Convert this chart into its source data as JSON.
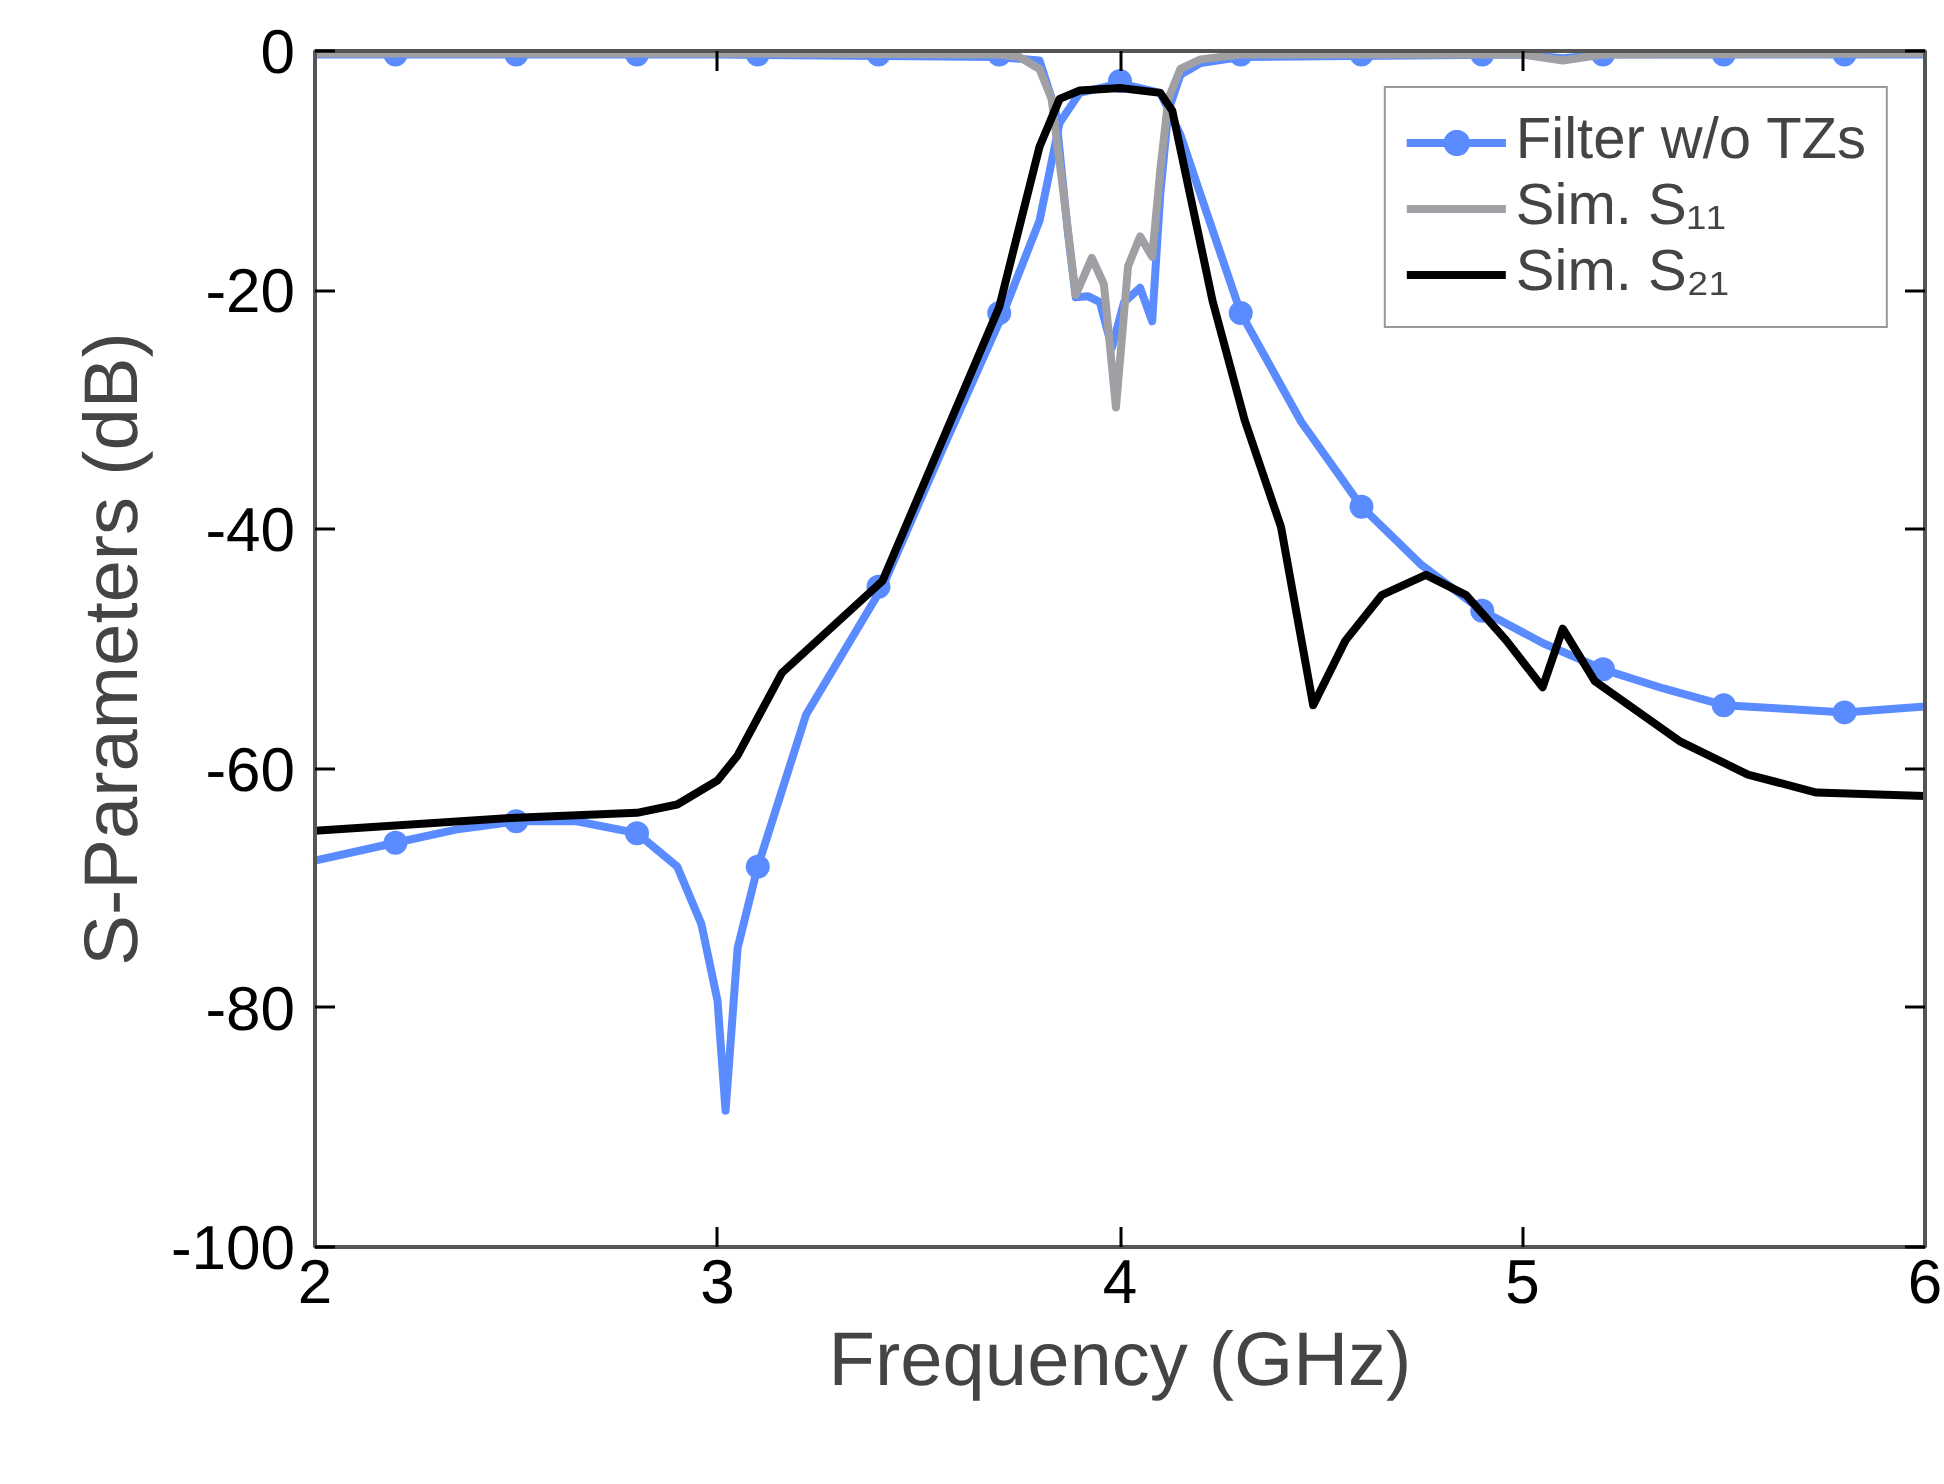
{
  "chart_data": {
    "type": "line",
    "xlabel": "Frequency (GHz)",
    "ylabel": "S-Parameters (dB)",
    "xlim": [
      2,
      6
    ],
    "ylim": [
      -100,
      0
    ],
    "xticks": [
      2,
      3,
      4,
      5,
      6
    ],
    "yticks": [
      -100,
      -80,
      -60,
      -40,
      -20,
      0
    ],
    "grid": false,
    "legend": "top right",
    "series": [
      {
        "name": "Filter w/o TZs",
        "color": "#5b8cff",
        "marker": "none",
        "x": [
          2.0,
          2.2,
          2.35,
          2.5,
          2.65,
          2.8,
          2.9,
          2.96,
          3.0,
          3.02,
          3.05,
          3.1,
          3.22,
          3.41,
          3.55,
          3.71,
          3.8,
          3.85,
          3.9,
          4.0,
          4.1,
          4.15,
          4.2,
          4.3,
          4.45,
          4.6,
          4.75,
          4.9,
          5.05,
          5.2,
          5.35,
          5.5,
          5.65,
          5.8,
          6.0
        ],
        "values": [
          -67.7,
          -66.2,
          -65.1,
          -64.4,
          -64.4,
          -65.4,
          -68.2,
          -73,
          -79.4,
          -88.6,
          -75,
          -68.2,
          -55.5,
          -44.8,
          -34,
          -21.9,
          -14.2,
          -6,
          -3.5,
          -2.7,
          -3.5,
          -7,
          -12,
          -21.9,
          -31,
          -38.1,
          -43,
          -46.8,
          -49.5,
          -51.7,
          -53.3,
          -54.7,
          -55,
          -55.3,
          -54.8
        ]
      },
      {
        "color": "#5b8cff",
        "marker": "none",
        "x": [
          2.0,
          3.0,
          3.7,
          3.8,
          3.84,
          3.87,
          3.89,
          3.92,
          3.95,
          3.98,
          4.01,
          4.05,
          4.08,
          4.1,
          4.12,
          4.15,
          4.2,
          4.3,
          5.0,
          5.1,
          5.2,
          6.0
        ],
        "values": [
          -0.3,
          -0.3,
          -0.5,
          -0.8,
          -5,
          -15,
          -20.6,
          -20.5,
          -21,
          -24.8,
          -21,
          -19.8,
          -22.6,
          -12,
          -5,
          -2,
          -1,
          -0.5,
          -0.3,
          -0.6,
          -0.3,
          -0.3
        ]
      },
      {
        "type": "scatter",
        "color": "#5b8cff",
        "marker": "circle",
        "x": [
          2.2,
          2.5,
          2.8,
          3.1,
          3.4,
          3.7,
          4.0,
          4.3,
          4.6,
          4.9,
          5.2,
          5.5,
          5.8
        ],
        "values": [
          -66.2,
          -64.4,
          -65.4,
          -68.2,
          -44.8,
          -21.9,
          -2.5,
          -21.9,
          -38.1,
          -46.8,
          -51.7,
          -54.7,
          -55.3
        ]
      },
      {
        "type": "scatter",
        "color": "#5b8cff",
        "marker": "circle",
        "x": [
          2.2,
          2.5,
          2.8,
          3.1,
          3.4,
          3.7,
          4.3,
          4.6,
          4.9,
          5.2,
          5.5,
          5.8
        ],
        "values": [
          -0.3,
          -0.3,
          -0.3,
          -0.3,
          -0.3,
          -0.3,
          -0.3,
          -0.3,
          -0.3,
          -0.3,
          -0.3,
          -0.3
        ]
      },
      {
        "name": "Sim. S₁₁",
        "color": "#a0a0a4",
        "marker": "none",
        "x": [
          2.0,
          3.0,
          3.7,
          3.75,
          3.8,
          3.83,
          3.86,
          3.89,
          3.93,
          3.96,
          3.99,
          4.02,
          4.05,
          4.08,
          4.1,
          4.12,
          4.15,
          4.2,
          4.3,
          5.0,
          5.1,
          5.2,
          6.0
        ],
        "values": [
          -0.2,
          -0.2,
          -0.3,
          -0.5,
          -1.5,
          -4,
          -12,
          -20.4,
          -17.3,
          -19.5,
          -29.8,
          -18,
          -15.5,
          -17.2,
          -10,
          -4,
          -1.5,
          -0.7,
          -0.3,
          -0.3,
          -0.8,
          -0.3,
          -0.2
        ]
      },
      {
        "name": "Sim. S₂₁",
        "color": "#000000",
        "marker": "none",
        "x": [
          2.0,
          2.5,
          2.8,
          2.9,
          3.0,
          3.05,
          3.16,
          3.41,
          3.7,
          3.8,
          3.85,
          3.9,
          4.0,
          4.1,
          4.13,
          4.23,
          4.31,
          4.4,
          4.48,
          4.56,
          4.65,
          4.76,
          4.86,
          4.96,
          5.05,
          5.1,
          5.18,
          5.39,
          5.56,
          5.73,
          6.0
        ],
        "values": [
          -65.2,
          -64.1,
          -63.7,
          -63,
          -61,
          -58.9,
          -52,
          -44.3,
          -21.4,
          -8,
          -4,
          -3.3,
          -3.1,
          -3.5,
          -5,
          -20.9,
          -30.9,
          -39.8,
          -54.7,
          -49.3,
          -45.5,
          -43.8,
          -45.5,
          -49.3,
          -53.2,
          -48.3,
          -52.7,
          -57.7,
          -60.5,
          -62,
          -62.3
        ]
      }
    ]
  }
}
